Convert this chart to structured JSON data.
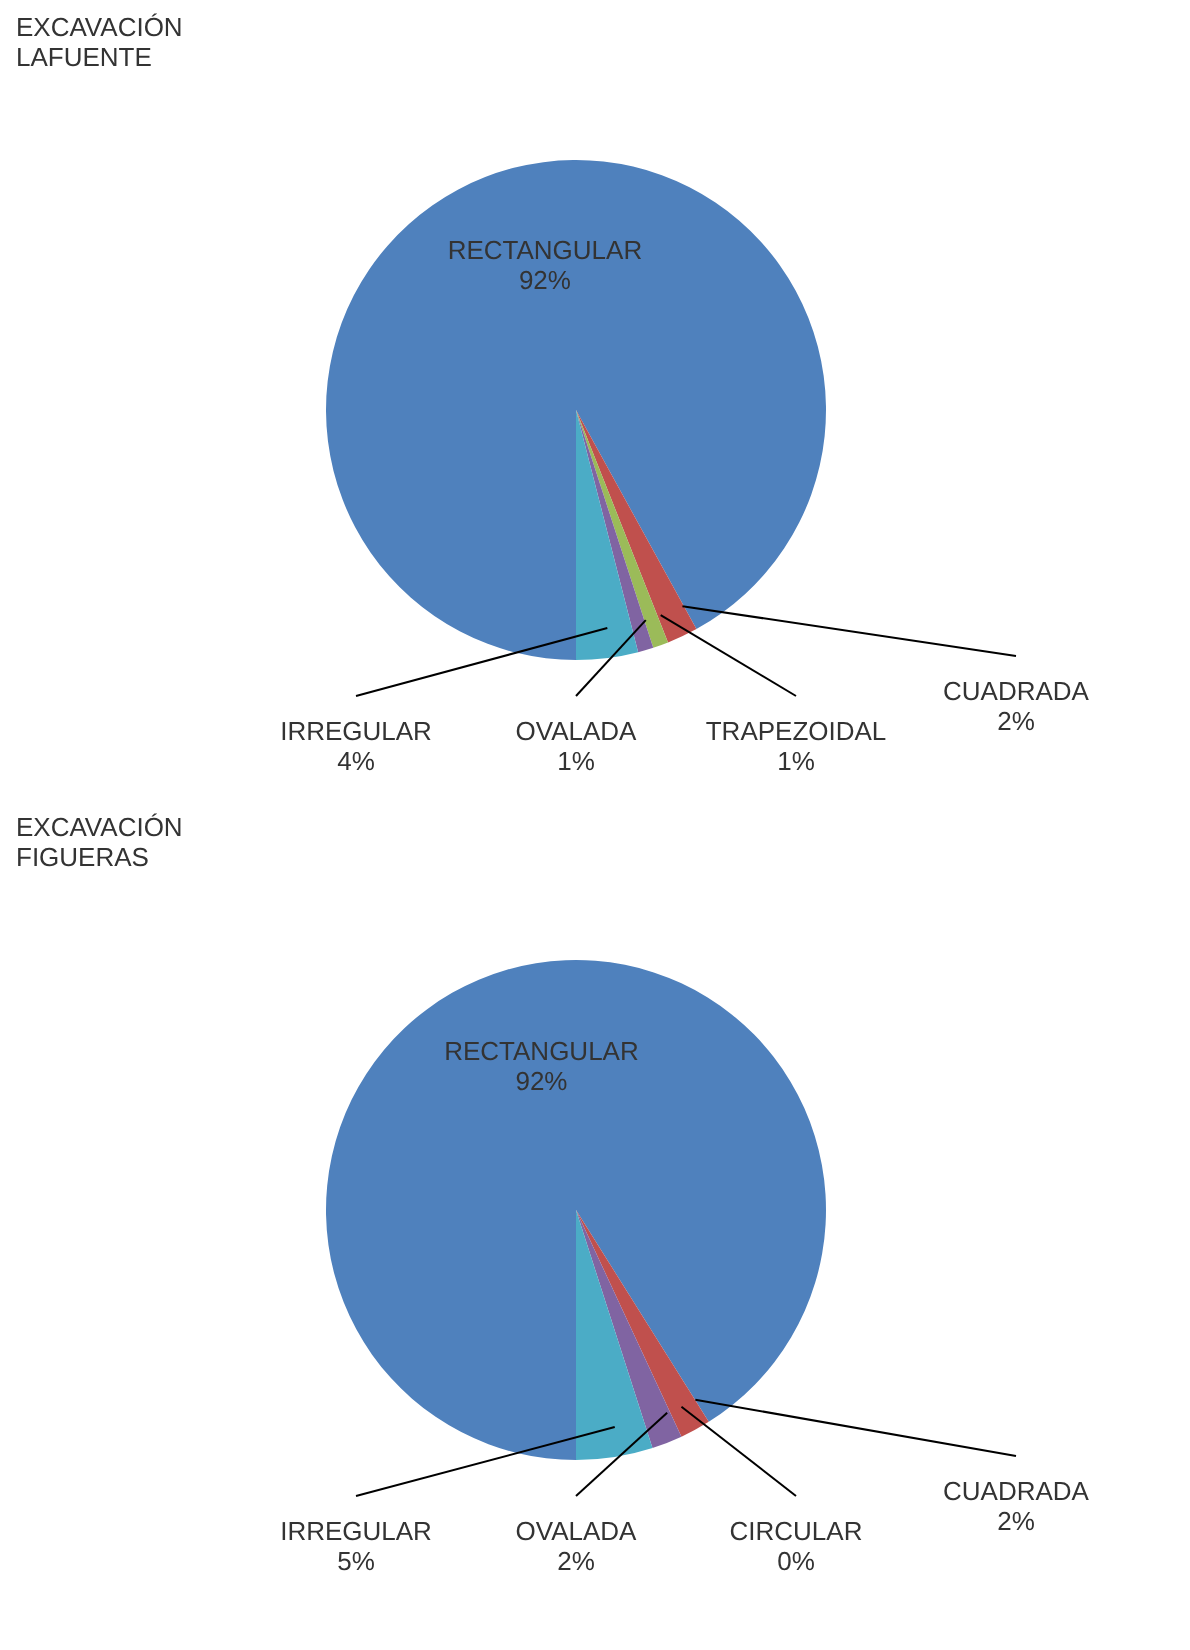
{
  "chart_data": [
    {
      "type": "pie",
      "title": [
        "EXCAVACIÓN",
        "LAFUENTE"
      ],
      "categories": [
        "RECTANGULAR",
        "CUADRADA",
        "TRAPEZOIDAL",
        "OVALADA",
        "IRREGULAR"
      ],
      "values": [
        92,
        2,
        1,
        1,
        4
      ],
      "value_labels": [
        "92%",
        "2%",
        "1%",
        "1%",
        "4%"
      ],
      "colors": [
        "#4f81bd",
        "#c0504d",
        "#9bbb59",
        "#8064a2",
        "#4bacc6"
      ],
      "legend": false
    },
    {
      "type": "pie",
      "title": [
        "EXCAVACIÓN",
        "FIGUERAS"
      ],
      "categories": [
        "RECTANGULAR",
        "CUADRADA",
        "CIRCULAR",
        "OVALADA",
        "IRREGULAR"
      ],
      "values": [
        92,
        2,
        0,
        2,
        5
      ],
      "value_labels": [
        "92%",
        "2%",
        "0%",
        "2%",
        "5%"
      ],
      "colors": [
        "#4f81bd",
        "#c0504d",
        "#9bbb59",
        "#8064a2",
        "#4bacc6"
      ],
      "legend": false
    }
  ]
}
